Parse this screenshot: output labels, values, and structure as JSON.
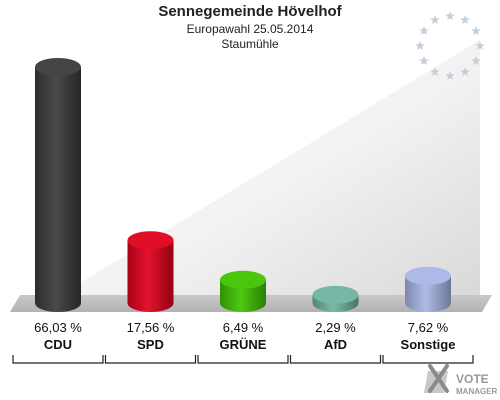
{
  "header": {
    "title": "Sennegemeinde Hövelhof",
    "subtitle": "Europawahl 25.05.2014",
    "district": "Staumühle"
  },
  "logo": {
    "line1": "VOTE",
    "line2": "MANAGER",
    "icon": "ballot-x-logo"
  },
  "stars_icon": "eu-stars-icon",
  "chart_data": {
    "type": "bar",
    "title": "Sennegemeinde Hövelhof",
    "subtitle": "Europawahl 25.05.2014",
    "district": "Staumühle",
    "categories": [
      "CDU",
      "SPD",
      "GRÜNE",
      "AfD",
      "Sonstige"
    ],
    "values": [
      66.03,
      17.56,
      6.49,
      2.29,
      7.62
    ],
    "value_labels": [
      "66,03 %",
      "17,56 %",
      "6,49 %",
      "2,29 %",
      "7,62 %"
    ],
    "colors": [
      "#3a3a3a",
      "#e0001b",
      "#3fc300",
      "#6fb3a0",
      "#a9b6e6"
    ],
    "ylim": [
      0,
      66.03
    ],
    "grid": false,
    "legend": "none"
  }
}
